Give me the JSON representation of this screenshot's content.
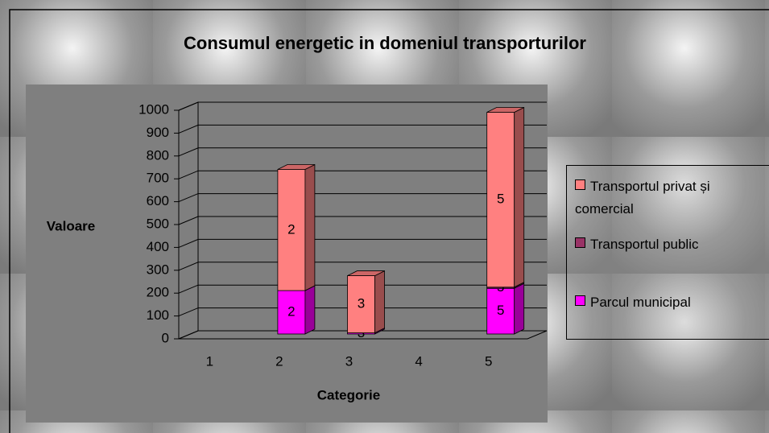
{
  "chart_data": {
    "type": "bar3d_stacked",
    "title": "Consumul energetic in domeniul transporturilor",
    "x_label": "Categorie",
    "y_label": "Valoare",
    "categories": [
      "1",
      "2",
      "3",
      "4",
      "5"
    ],
    "series": [
      {
        "name": "Parcul municipal",
        "color": "#ff00ff",
        "values": [
          null,
          190,
          5,
          null,
          200
        ]
      },
      {
        "name": "Transportul public",
        "color": "#993366",
        "values": [
          null,
          0,
          0,
          null,
          5
        ]
      },
      {
        "name": "Transportul privat și comercial",
        "color": "#ff8080",
        "values": [
          null,
          530,
          250,
          null,
          765
        ]
      }
    ],
    "ylim": [
      0,
      1000
    ],
    "yticks": [
      0,
      100,
      200,
      300,
      400,
      500,
      600,
      700,
      800,
      900,
      1000
    ],
    "grid": true,
    "legend": "right"
  }
}
